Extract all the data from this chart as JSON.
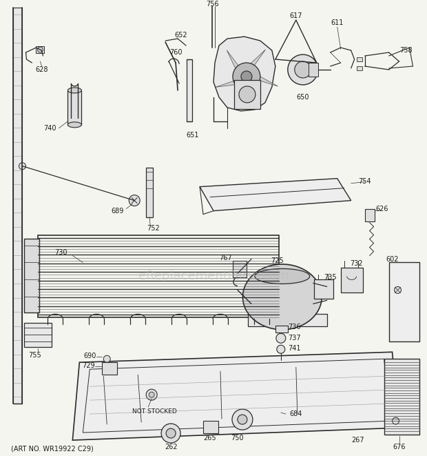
{
  "bg_color": "#f5f5f0",
  "line_color": "#2a2a2a",
  "text_color": "#1a1a1a",
  "watermark_color": "#bbbbbb",
  "watermark_text": "eReplacementParts.com",
  "bottom_left_text": "(ART NO. WR19922 C29)",
  "fig_width": 6.2,
  "fig_height": 6.61,
  "dpi": 100
}
